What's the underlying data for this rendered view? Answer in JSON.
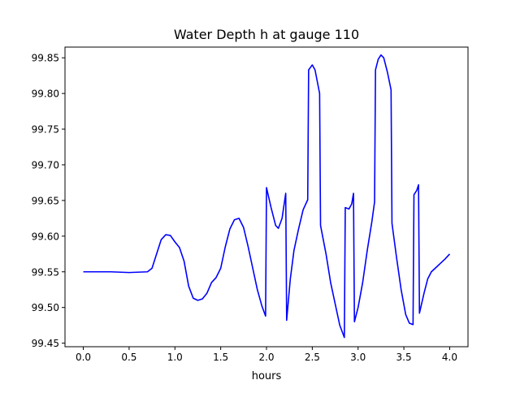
{
  "chart_data": {
    "type": "line",
    "title": "Water Depth h at gauge 110",
    "xlabel": "hours",
    "ylabel": "",
    "xlim": [
      -0.2,
      4.2
    ],
    "ylim": [
      99.445,
      99.865
    ],
    "xticks": [
      0.0,
      0.5,
      1.0,
      1.5,
      2.0,
      2.5,
      3.0,
      3.5,
      4.0
    ],
    "xtick_labels": [
      "0.0",
      "0.5",
      "1.0",
      "1.5",
      "2.0",
      "2.5",
      "3.0",
      "3.5",
      "4.0"
    ],
    "yticks": [
      99.45,
      99.5,
      99.55,
      99.6,
      99.65,
      99.7,
      99.75,
      99.8,
      99.85
    ],
    "ytick_labels": [
      "99.45",
      "99.50",
      "99.55",
      "99.60",
      "99.65",
      "99.70",
      "99.75",
      "99.80",
      "99.85"
    ],
    "grid": false,
    "series": [
      {
        "color": "#0000ff",
        "points": [
          [
            0.0,
            99.55
          ],
          [
            0.3,
            99.55
          ],
          [
            0.5,
            99.549
          ],
          [
            0.7,
            99.55
          ],
          [
            0.75,
            99.555
          ],
          [
            0.8,
            99.575
          ],
          [
            0.85,
            99.595
          ],
          [
            0.9,
            99.602
          ],
          [
            0.95,
            99.601
          ],
          [
            1.0,
            99.592
          ],
          [
            1.05,
            99.584
          ],
          [
            1.1,
            99.565
          ],
          [
            1.15,
            99.53
          ],
          [
            1.2,
            99.513
          ],
          [
            1.25,
            99.51
          ],
          [
            1.3,
            99.512
          ],
          [
            1.35,
            99.52
          ],
          [
            1.4,
            99.535
          ],
          [
            1.45,
            99.542
          ],
          [
            1.5,
            99.555
          ],
          [
            1.55,
            99.585
          ],
          [
            1.6,
            99.61
          ],
          [
            1.65,
            99.623
          ],
          [
            1.7,
            99.625
          ],
          [
            1.75,
            99.612
          ],
          [
            1.8,
            99.585
          ],
          [
            1.85,
            99.555
          ],
          [
            1.9,
            99.525
          ],
          [
            1.95,
            99.502
          ],
          [
            1.99,
            99.488
          ],
          [
            2.0,
            99.668
          ],
          [
            2.05,
            99.64
          ],
          [
            2.1,
            99.615
          ],
          [
            2.13,
            99.611
          ],
          [
            2.17,
            99.625
          ],
          [
            2.21,
            99.66
          ],
          [
            2.22,
            99.482
          ],
          [
            2.26,
            99.54
          ],
          [
            2.3,
            99.58
          ],
          [
            2.35,
            99.61
          ],
          [
            2.4,
            99.637
          ],
          [
            2.45,
            99.651
          ],
          [
            2.46,
            99.833
          ],
          [
            2.5,
            99.84
          ],
          [
            2.53,
            99.833
          ],
          [
            2.58,
            99.8
          ],
          [
            2.59,
            99.615
          ],
          [
            2.65,
            99.575
          ],
          [
            2.7,
            99.535
          ],
          [
            2.75,
            99.505
          ],
          [
            2.8,
            99.475
          ],
          [
            2.85,
            99.458
          ],
          [
            2.86,
            99.64
          ],
          [
            2.9,
            99.638
          ],
          [
            2.93,
            99.645
          ],
          [
            2.95,
            99.66
          ],
          [
            2.96,
            99.48
          ],
          [
            3.0,
            99.5
          ],
          [
            3.05,
            99.535
          ],
          [
            3.1,
            99.58
          ],
          [
            3.15,
            99.62
          ],
          [
            3.18,
            99.648
          ],
          [
            3.19,
            99.833
          ],
          [
            3.22,
            99.848
          ],
          [
            3.25,
            99.854
          ],
          [
            3.28,
            99.85
          ],
          [
            3.32,
            99.83
          ],
          [
            3.36,
            99.805
          ],
          [
            3.37,
            99.618
          ],
          [
            3.42,
            99.57
          ],
          [
            3.47,
            99.525
          ],
          [
            3.52,
            99.49
          ],
          [
            3.56,
            99.478
          ],
          [
            3.6,
            99.476
          ],
          [
            3.61,
            99.658
          ],
          [
            3.64,
            99.664
          ],
          [
            3.66,
            99.672
          ],
          [
            3.67,
            99.492
          ],
          [
            3.72,
            99.52
          ],
          [
            3.76,
            99.54
          ],
          [
            3.8,
            99.55
          ],
          [
            3.85,
            99.556
          ],
          [
            3.9,
            99.562
          ],
          [
            3.95,
            99.568
          ],
          [
            4.0,
            99.575
          ]
        ]
      }
    ]
  }
}
